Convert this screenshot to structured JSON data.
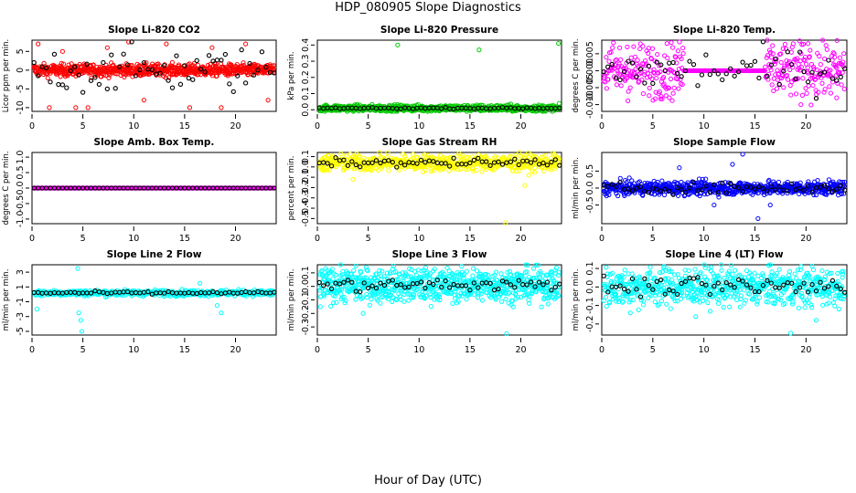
{
  "page_title": "HDP_080905  Slope Diagnostics",
  "shared_xlabel": "Hour of Day (UTC)",
  "colors": {
    "highlight": "#000000",
    "red": "#ff0000",
    "green": "#00cc00",
    "magenta": "#ff00ff",
    "yellow": "#ffff00",
    "blue": "#0000ff",
    "cyan": "#00ffff"
  },
  "chart_data": [
    {
      "type": "scatter",
      "title": "Slope Li-820 CO2",
      "xlabel": "",
      "ylabel": "Licor ppm per min.",
      "xlim": [
        0,
        24
      ],
      "ylim": [
        -11,
        8
      ],
      "xticks": [
        0,
        5,
        10,
        15,
        20
      ],
      "yticks": [
        -10,
        -5,
        0,
        5
      ],
      "ytick_labels": [
        "-10",
        "-5",
        "0",
        "5"
      ],
      "series": [
        {
          "name": "all",
          "color": "red",
          "center": 0,
          "spread": 0.8,
          "count": 700,
          "outliers": [
            [
              0.6,
              7
            ],
            [
              1.7,
              -10
            ],
            [
              3,
              5
            ],
            [
              4.3,
              -10
            ],
            [
              5.5,
              -10
            ],
            [
              7.4,
              6
            ],
            [
              9.5,
              7.5
            ],
            [
              11,
              -8
            ],
            [
              13.2,
              7
            ],
            [
              15.5,
              -10
            ],
            [
              17.7,
              6
            ],
            [
              18.6,
              -10
            ],
            [
              21,
              7
            ],
            [
              23.2,
              -8
            ]
          ]
        },
        {
          "name": "hourly",
          "color": "highlight",
          "mode": "scatter",
          "count": 60,
          "spread": 6
        }
      ]
    },
    {
      "type": "scatter",
      "title": "Slope Li-820 Pressure",
      "xlabel": "",
      "ylabel": "kPa per min.",
      "xlim": [
        0,
        24
      ],
      "ylim": [
        -0.01,
        0.43
      ],
      "xticks": [
        0,
        5,
        10,
        15,
        20
      ],
      "yticks": [
        0.0,
        0.1,
        0.2,
        0.3,
        0.4
      ],
      "ytick_labels": [
        "0.0",
        "0.1",
        "0.2",
        "0.3",
        "0.4"
      ],
      "series": [
        {
          "name": "all",
          "color": "green",
          "center": 0.01,
          "spread": 0.01,
          "count": 700,
          "outliers": [
            [
              7.9,
              0.4
            ],
            [
              15.9,
              0.37
            ],
            [
              23.7,
              0.41
            ]
          ]
        },
        {
          "name": "hourly",
          "color": "highlight",
          "mode": "line",
          "count": 60,
          "spread": 0.004
        }
      ]
    },
    {
      "type": "scatter",
      "title": "Slope Li-820 Temp.",
      "xlabel": "",
      "ylabel": "degrees C per min.",
      "xlim": [
        0,
        24
      ],
      "ylim": [
        -0.012,
        0.009
      ],
      "xticks": [
        0,
        5,
        10,
        15,
        20
      ],
      "yticks": [
        -0.01,
        -0.005,
        0.0,
        0.005
      ],
      "ytick_labels": [
        "-0.010",
        "-0.005",
        "0.000",
        "0.005"
      ],
      "series": [
        {
          "name": "all",
          "color": "magenta",
          "center": 0,
          "spread": 0.004,
          "count": 500,
          "quiet_range": [
            8,
            16
          ],
          "outliers": [
            [
              20.2,
              0.008
            ],
            [
              19.5,
              -0.01
            ],
            [
              2.5,
              0.007
            ],
            [
              23,
              -0.008
            ]
          ]
        },
        {
          "name": "hourly",
          "color": "highlight",
          "mode": "scatter",
          "count": 60,
          "spread": 0.006
        }
      ]
    },
    {
      "type": "scatter",
      "title": "Slope Amb. Box Temp.",
      "xlabel": "",
      "ylabel": "degrees C per min.",
      "xlim": [
        0,
        24
      ],
      "ylim": [
        -1.15,
        1.15
      ],
      "xticks": [
        0,
        5,
        10,
        15,
        20
      ],
      "yticks": [
        -1.0,
        -0.5,
        0.0,
        0.5,
        1.0
      ],
      "ytick_labels": [
        "-1.0",
        "-0.5",
        "0.0",
        "0.5",
        "1.0"
      ],
      "series": [
        {
          "name": "all",
          "color": "magenta",
          "center": 0,
          "spread": 0,
          "count": 400,
          "outliers": []
        },
        {
          "name": "hourly",
          "color": "highlight",
          "mode": "line",
          "count": 60,
          "spread": 0
        }
      ]
    },
    {
      "type": "scatter",
      "title": "Slope Gas Stream RH",
      "xlabel": "",
      "ylabel": "percent per min.",
      "xlim": [
        0,
        24
      ],
      "ylim": [
        -0.55,
        0.14
      ],
      "xticks": [
        0,
        5,
        10,
        15,
        20
      ],
      "yticks": [
        -0.5,
        -0.4,
        -0.3,
        -0.2,
        -0.1,
        0.0,
        0.1
      ],
      "ytick_labels": [
        "-0.5",
        "-0.4",
        "-0.3",
        "-0.2",
        "-0.1",
        "0.0",
        "0.1"
      ],
      "series": [
        {
          "name": "all",
          "color": "yellow",
          "center": 0.04,
          "spread": 0.04,
          "count": 600,
          "outliers": [
            [
              18.5,
              -0.54
            ],
            [
              20.4,
              -0.18
            ],
            [
              3.5,
              -0.12
            ]
          ]
        },
        {
          "name": "hourly",
          "color": "highlight",
          "mode": "line",
          "count": 60,
          "spread": 0.04
        }
      ]
    },
    {
      "type": "scatter",
      "title": "Slope Sample Flow",
      "xlabel": "",
      "ylabel": "ml/min per min.",
      "xlim": [
        0,
        24
      ],
      "ylim": [
        -1.05,
        1.05
      ],
      "xticks": [
        0,
        5,
        10,
        15,
        20
      ],
      "yticks": [
        -0.5,
        0.0,
        0.5
      ],
      "ytick_labels": [
        "-0.5",
        "0.0",
        "0.5"
      ],
      "series": [
        {
          "name": "all",
          "color": "blue",
          "center": 0,
          "spread": 0.1,
          "count": 700,
          "outliers": [
            [
              13.8,
              1.0
            ],
            [
              15.3,
              -0.9
            ],
            [
              7.6,
              0.6
            ],
            [
              12.8,
              0.7
            ],
            [
              16.5,
              -0.5
            ],
            [
              11,
              -0.5
            ]
          ]
        },
        {
          "name": "hourly",
          "color": "highlight",
          "mode": "scatter",
          "count": 60,
          "spread": 0.15
        }
      ]
    },
    {
      "type": "scatter",
      "title": "Slope Line 2 Flow",
      "xlabel": "",
      "ylabel": "ml/min per min.",
      "xlim": [
        0,
        24
      ],
      "ylim": [
        -5.5,
        4
      ],
      "xticks": [
        0,
        5,
        10,
        15,
        20
      ],
      "yticks": [
        -5,
        -3,
        -1,
        1,
        3
      ],
      "ytick_labels": [
        "-5",
        "-3",
        "-1",
        "1",
        "3"
      ],
      "series": [
        {
          "name": "all",
          "color": "cyan",
          "center": 0.2,
          "spread": 0.2,
          "count": 500,
          "outliers": [
            [
              4.5,
              3.5
            ],
            [
              4.6,
              -2.5
            ],
            [
              4.8,
              -3.5
            ],
            [
              4.9,
              -5
            ],
            [
              0.5,
              -2
            ],
            [
              16.5,
              1.5
            ],
            [
              18.2,
              -1.5
            ],
            [
              18.6,
              -2.5
            ]
          ]
        },
        {
          "name": "hourly",
          "color": "highlight",
          "mode": "line",
          "count": 60,
          "spread": 0.2
        }
      ]
    },
    {
      "type": "scatter",
      "title": "Slope Line 3 Flow",
      "xlabel": "",
      "ylabel": "ml/min per min.",
      "xlim": [
        0,
        24
      ],
      "ylim": [
        -0.36,
        0.16
      ],
      "xticks": [
        0,
        5,
        10,
        15,
        20
      ],
      "yticks": [
        -0.3,
        -0.2,
        -0.1,
        0.0,
        0.1
      ],
      "ytick_labels": [
        "-0.3",
        "-0.2",
        "-0.1",
        "0.0",
        "0.1"
      ],
      "series": [
        {
          "name": "all",
          "color": "cyan",
          "center": 0.01,
          "spread": 0.06,
          "count": 800,
          "outliers": [
            [
              18.6,
              -0.35
            ],
            [
              4.5,
              -0.2
            ],
            [
              0.3,
              -0.15
            ]
          ]
        },
        {
          "name": "hourly",
          "color": "highlight",
          "mode": "scatter",
          "count": 60,
          "spread": 0.05
        }
      ]
    },
    {
      "type": "scatter",
      "title": "Slope Line 4 (LT) Flow",
      "xlabel": "",
      "ylabel": "ml/min per min.",
      "xlim": [
        0,
        24
      ],
      "ylim": [
        -0.26,
        0.12
      ],
      "xticks": [
        0,
        5,
        10,
        15,
        20
      ],
      "yticks": [
        -0.2,
        -0.1,
        0.0,
        0.1
      ],
      "ytick_labels": [
        "-0.2",
        "-0.1",
        "0.0",
        "0.1"
      ],
      "series": [
        {
          "name": "all",
          "color": "cyan",
          "center": 0,
          "spread": 0.05,
          "count": 700,
          "outliers": [
            [
              18.5,
              -0.25
            ],
            [
              9.2,
              -0.16
            ],
            [
              2.8,
              -0.14
            ],
            [
              21,
              -0.18
            ]
          ]
        },
        {
          "name": "hourly",
          "color": "highlight",
          "mode": "scatter",
          "count": 60,
          "spread": 0.05
        }
      ]
    }
  ]
}
